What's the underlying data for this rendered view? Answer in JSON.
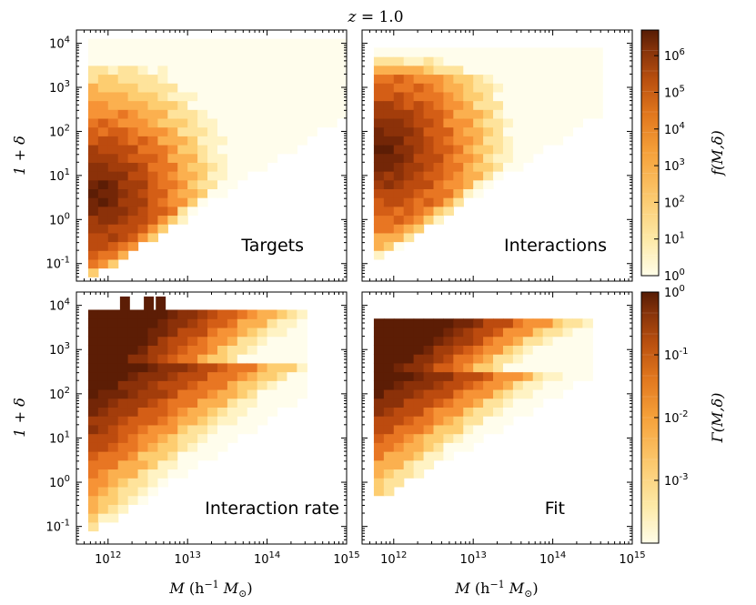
{
  "title": {
    "lhs": "z",
    "eq": " = ",
    "rhs": "1.0"
  },
  "colors": {
    "ramp": [
      "#fffbe0",
      "#fde7a2",
      "#fbc76a",
      "#f7a23a",
      "#e2751b",
      "#bd520e",
      "#8c3409",
      "#5a1e05"
    ]
  },
  "axes": {
    "x_label": {
      "main": "M",
      "units_open": " (h",
      "units_exp": "−1",
      "units_mid": " M",
      "units_sub": "⊙",
      "units_close": ")"
    },
    "y_label": "1 + δ",
    "x_ticks": [
      {
        "label": "10",
        "exp": "12",
        "value": 1000000000000.0
      },
      {
        "label": "10",
        "exp": "13",
        "value": 10000000000000.0
      },
      {
        "label": "10",
        "exp": "14",
        "value": 100000000000000.0
      },
      {
        "label": "10",
        "exp": "15",
        "value": 1000000000000000.0
      }
    ],
    "y_ticks": [
      {
        "label": "10",
        "exp": "-1",
        "value": 0.1
      },
      {
        "label": "10",
        "exp": "0",
        "value": 1
      },
      {
        "label": "10",
        "exp": "1",
        "value": 10
      },
      {
        "label": "10",
        "exp": "2",
        "value": 100
      },
      {
        "label": "10",
        "exp": "3",
        "value": 1000
      },
      {
        "label": "10",
        "exp": "4",
        "value": 10000
      }
    ]
  },
  "colorbars": [
    {
      "label": "f(M,δ)",
      "scale": "log",
      "range": [
        1,
        5000000.0
      ],
      "ticks": [
        {
          "label": "10",
          "exp": "0",
          "value": 1
        },
        {
          "label": "10",
          "exp": "1",
          "value": 10
        },
        {
          "label": "10",
          "exp": "2",
          "value": 100
        },
        {
          "label": "10",
          "exp": "3",
          "value": 1000
        },
        {
          "label": "10",
          "exp": "4",
          "value": 10000
        },
        {
          "label": "10",
          "exp": "5",
          "value": 100000
        },
        {
          "label": "10",
          "exp": "6",
          "value": 1000000
        }
      ]
    },
    {
      "label": "Γ(M,δ)",
      "scale": "log",
      "range": [
        0.0001,
        1
      ],
      "ticks": [
        {
          "label": "10",
          "exp": "-3",
          "value": 0.001
        },
        {
          "label": "10",
          "exp": "-2",
          "value": 0.01
        },
        {
          "label": "10",
          "exp": "-1",
          "value": 0.1
        },
        {
          "label": "10",
          "exp": "0",
          "value": 1
        }
      ]
    }
  ],
  "chart_data": [
    {
      "type": "heatmap",
      "title": "Targets",
      "panel": "top-left",
      "xlabel": "M (h^-1 M_sun)",
      "ylabel": "1 + δ",
      "xlim": [
        400000000000.0,
        1000000000000000.0
      ],
      "ylim": [
        0.04,
        20000
      ],
      "xscale": "log",
      "yscale": "log",
      "colorbar": "f(M,δ)",
      "shape": {
        "x_min_log": 11.75,
        "x_max_log": 15.0,
        "y_low_at_xmin_log": -1.4,
        "y_low_slope": 1.17,
        "y_top_log": 4.0,
        "peak_x_log": 11.9,
        "peak_y_log": 0.6,
        "peak_value_log": 6.6
      }
    },
    {
      "type": "heatmap",
      "title": "Interactions",
      "panel": "top-right",
      "xlabel": "M (h^-1 M_sun)",
      "ylabel": "1 + δ",
      "xlim": [
        400000000000.0,
        1000000000000000.0
      ],
      "ylim": [
        0.04,
        20000
      ],
      "xscale": "log",
      "yscale": "log",
      "colorbar": "f(M,δ)",
      "shape": {
        "x_min_log": 11.75,
        "x_max_log": 14.6,
        "y_low_at_xmin_log": -1.0,
        "y_low_slope": 1.2,
        "y_top_log": 3.8,
        "peak_x_log": 11.9,
        "peak_y_log": 1.6,
        "peak_value_log": 5.0
      }
    },
    {
      "type": "heatmap",
      "title": "Interaction rate",
      "panel": "bottom-left",
      "xlabel": "M (h^-1 M_sun)",
      "ylabel": "1 + δ",
      "xlim": [
        400000000000.0,
        1000000000000000.0
      ],
      "ylim": [
        0.04,
        20000
      ],
      "xscale": "log",
      "yscale": "log",
      "colorbar": "Γ(M,δ)",
      "shape": {
        "x_min_log": 11.75,
        "x_max_log": 14.5,
        "y_low_at_xmin_log": -1.2,
        "y_low_slope": 1.15,
        "y_top_log": 3.9,
        "peak_value_log": 0.0
      }
    },
    {
      "type": "heatmap",
      "title": "Fit",
      "panel": "bottom-right",
      "xlabel": "M (h^-1 M_sun)",
      "ylabel": "1 + δ",
      "xlim": [
        400000000000.0,
        1000000000000000.0
      ],
      "ylim": [
        0.04,
        20000
      ],
      "xscale": "log",
      "yscale": "log",
      "colorbar": "Γ(M,δ)",
      "shape": {
        "x_min_log": 11.75,
        "x_max_log": 14.4,
        "y_low_at_xmin_log": -0.45,
        "y_low_slope": 1.05,
        "y_top_log": 3.65,
        "peak_value_log": 0.0
      }
    }
  ]
}
